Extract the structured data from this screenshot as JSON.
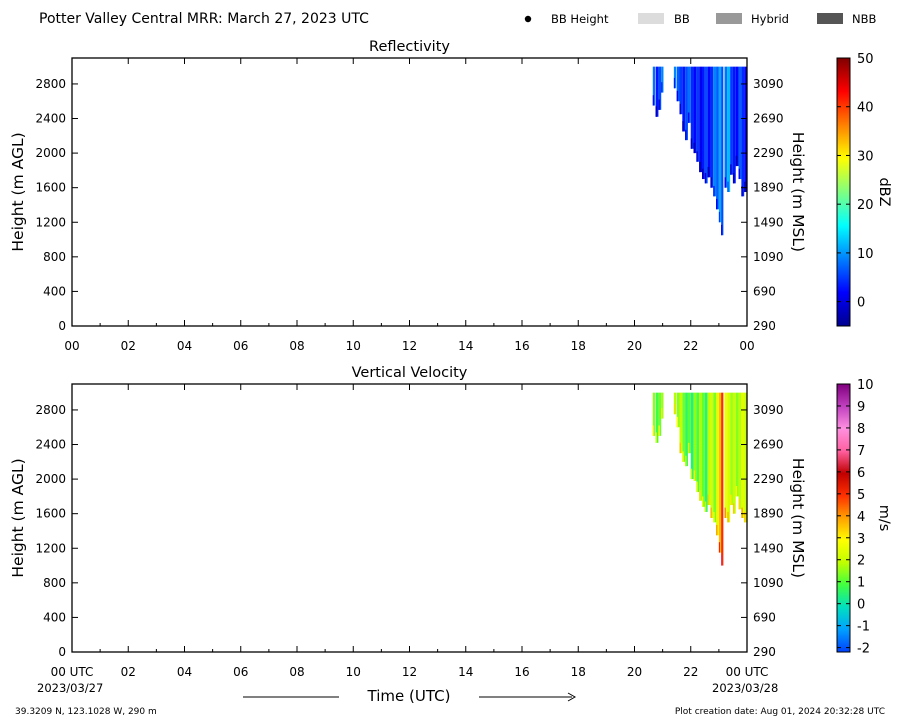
{
  "header": {
    "title": "Potter Valley Central MRR:  March 27, 2023 UTC"
  },
  "legend": {
    "items": [
      {
        "label": "BB Height",
        "kind": "marker",
        "color": "#000000"
      },
      {
        "label": "BB",
        "kind": "swatch",
        "color": "#dcdcdc"
      },
      {
        "label": "Hybrid",
        "kind": "swatch",
        "color": "#999999"
      },
      {
        "label": "NBB",
        "kind": "swatch",
        "color": "#555555"
      }
    ]
  },
  "footer": {
    "location": "39.3209 N, 123.1028 W, 290 m",
    "creation": "Plot creation date: Aug 01, 2024 20:32:28 UTC",
    "time_label": "Time (UTC)",
    "start_date": "2023/03/27",
    "end_date": "2023/03/28"
  },
  "chart_data": [
    {
      "type": "heatmap",
      "title": "Reflectivity",
      "ylabel": "Height (m AGL)",
      "ylabel_right": "Height (m MSL)",
      "xticks": [
        "00",
        "02",
        "04",
        "06",
        "08",
        "10",
        "12",
        "14",
        "16",
        "18",
        "20",
        "22",
        "00"
      ],
      "x_tick_hours": [
        0,
        2,
        4,
        6,
        8,
        10,
        12,
        14,
        16,
        18,
        20,
        22,
        24
      ],
      "xlim_hours": [
        0,
        24
      ],
      "ylim": [
        0,
        3100
      ],
      "yticks": [
        0,
        400,
        800,
        1200,
        1600,
        2000,
        2400,
        2800
      ],
      "yticks_right": [
        290,
        690,
        1090,
        1490,
        1890,
        2290,
        2690,
        3090
      ],
      "colorbar": {
        "label": "dBZ",
        "range": [
          -5,
          50
        ],
        "ticks": [
          0,
          10,
          20,
          30,
          40,
          50
        ],
        "colors": [
          "#00008f",
          "#0000ff",
          "#0080ff",
          "#00ffff",
          "#80ff80",
          "#ffff00",
          "#ff8000",
          "#ff0000",
          "#800000"
        ]
      },
      "echo_top": 3000,
      "columns": [
        {
          "t": 20.65,
          "w": 0.08,
          "bottom": 2550,
          "value": 8
        },
        {
          "t": 20.75,
          "w": 0.1,
          "bottom": 2420,
          "value": 3
        },
        {
          "t": 20.85,
          "w": 0.1,
          "bottom": 2500,
          "value": 6
        },
        {
          "t": 20.95,
          "w": 0.08,
          "bottom": 2700,
          "value": 9
        },
        {
          "t": 21.4,
          "w": 0.08,
          "bottom": 2750,
          "value": 9
        },
        {
          "t": 21.5,
          "w": 0.1,
          "bottom": 2600,
          "value": 7
        },
        {
          "t": 21.6,
          "w": 0.1,
          "bottom": 2450,
          "value": 5
        },
        {
          "t": 21.7,
          "w": 0.1,
          "bottom": 2250,
          "value": 3
        },
        {
          "t": 21.8,
          "w": 0.1,
          "bottom": 2150,
          "value": 6
        },
        {
          "t": 21.9,
          "w": 0.1,
          "bottom": 2350,
          "value": 8
        },
        {
          "t": 22.0,
          "w": 0.1,
          "bottom": 2050,
          "value": 4
        },
        {
          "t": 22.1,
          "w": 0.1,
          "bottom": 2000,
          "value": 2
        },
        {
          "t": 22.2,
          "w": 0.1,
          "bottom": 1900,
          "value": 5
        },
        {
          "t": 22.3,
          "w": 0.1,
          "bottom": 1780,
          "value": 1
        },
        {
          "t": 22.4,
          "w": 0.1,
          "bottom": 1700,
          "value": 3
        },
        {
          "t": 22.5,
          "w": 0.1,
          "bottom": 1650,
          "value": 6
        },
        {
          "t": 22.6,
          "w": 0.1,
          "bottom": 1720,
          "value": 2
        },
        {
          "t": 22.7,
          "w": 0.1,
          "bottom": 1600,
          "value": 4
        },
        {
          "t": 22.8,
          "w": 0.1,
          "bottom": 1500,
          "value": 9
        },
        {
          "t": 22.9,
          "w": 0.1,
          "bottom": 1350,
          "value": 7
        },
        {
          "t": 23.0,
          "w": 0.08,
          "bottom": 1200,
          "value": 11
        },
        {
          "t": 23.08,
          "w": 0.08,
          "bottom": 1050,
          "value": 6
        },
        {
          "t": 23.2,
          "w": 0.1,
          "bottom": 1600,
          "value": 8
        },
        {
          "t": 23.3,
          "w": 0.1,
          "bottom": 1550,
          "value": 12
        },
        {
          "t": 23.4,
          "w": 0.1,
          "bottom": 1750,
          "value": 5
        },
        {
          "t": 23.5,
          "w": 0.1,
          "bottom": 1650,
          "value": 3
        },
        {
          "t": 23.6,
          "w": 0.1,
          "bottom": 1850,
          "value": 2
        },
        {
          "t": 23.7,
          "w": 0.1,
          "bottom": 1700,
          "value": 7
        },
        {
          "t": 23.8,
          "w": 0.1,
          "bottom": 1500,
          "value": 4
        },
        {
          "t": 23.9,
          "w": 0.1,
          "bottom": 1550,
          "value": 2
        }
      ]
    },
    {
      "type": "heatmap",
      "title": "Vertical Velocity",
      "ylabel": "Height (m AGL)",
      "ylabel_right": "Height (m MSL)",
      "xticks": [
        "00 UTC",
        "02",
        "04",
        "06",
        "08",
        "10",
        "12",
        "14",
        "16",
        "18",
        "20",
        "22",
        "00 UTC"
      ],
      "x_tick_hours": [
        0,
        2,
        4,
        6,
        8,
        10,
        12,
        14,
        16,
        18,
        20,
        22,
        24
      ],
      "xlim_hours": [
        0,
        24
      ],
      "ylim": [
        0,
        3100
      ],
      "yticks": [
        0,
        400,
        800,
        1200,
        1600,
        2000,
        2400,
        2800
      ],
      "yticks_right": [
        290,
        690,
        1090,
        1490,
        1890,
        2290,
        2690,
        3090
      ],
      "colorbar": {
        "label": "m/s",
        "range": [
          -2.2,
          10
        ],
        "ticks": [
          -2,
          -1,
          0,
          1,
          2,
          3,
          4,
          5,
          6,
          7,
          8,
          9,
          10
        ],
        "colors": [
          "#0040ff",
          "#00a0ff",
          "#00e0c0",
          "#40ff40",
          "#c0ff00",
          "#ffff00",
          "#ffa000",
          "#ff3000",
          "#c00000",
          "#ff60a0",
          "#ff90e0",
          "#c040c0",
          "#800080"
        ]
      },
      "echo_top": 3000,
      "columns": [
        {
          "t": 20.65,
          "w": 0.08,
          "bottom": 2500,
          "value": 1.5
        },
        {
          "t": 20.75,
          "w": 0.1,
          "bottom": 2420,
          "value": 0.8
        },
        {
          "t": 20.85,
          "w": 0.1,
          "bottom": 2500,
          "value": 1.2
        },
        {
          "t": 20.95,
          "w": 0.08,
          "bottom": 2700,
          "value": 1.6
        },
        {
          "t": 21.4,
          "w": 0.08,
          "bottom": 2750,
          "value": 1.8
        },
        {
          "t": 21.5,
          "w": 0.1,
          "bottom": 2600,
          "value": 1.4
        },
        {
          "t": 21.6,
          "w": 0.1,
          "bottom": 2300,
          "value": 2.0
        },
        {
          "t": 21.7,
          "w": 0.1,
          "bottom": 2200,
          "value": 1.2
        },
        {
          "t": 21.8,
          "w": 0.1,
          "bottom": 2150,
          "value": 0.6
        },
        {
          "t": 21.9,
          "w": 0.1,
          "bottom": 2300,
          "value": 1.0
        },
        {
          "t": 22.0,
          "w": 0.1,
          "bottom": 2000,
          "value": 0.4
        },
        {
          "t": 22.1,
          "w": 0.1,
          "bottom": 1980,
          "value": 1.5
        },
        {
          "t": 22.2,
          "w": 0.1,
          "bottom": 1850,
          "value": 0.9
        },
        {
          "t": 22.3,
          "w": 0.1,
          "bottom": 1750,
          "value": 1.7
        },
        {
          "t": 22.4,
          "w": 0.1,
          "bottom": 1680,
          "value": 1.1
        },
        {
          "t": 22.5,
          "w": 0.1,
          "bottom": 1620,
          "value": 0.5
        },
        {
          "t": 22.6,
          "w": 0.1,
          "bottom": 1700,
          "value": 1.9
        },
        {
          "t": 22.7,
          "w": 0.1,
          "bottom": 1550,
          "value": 2.2
        },
        {
          "t": 22.8,
          "w": 0.1,
          "bottom": 1500,
          "value": 1.3
        },
        {
          "t": 22.9,
          "w": 0.1,
          "bottom": 1350,
          "value": 2.4
        },
        {
          "t": 23.0,
          "w": 0.08,
          "bottom": 1150,
          "value": 3.6
        },
        {
          "t": 23.08,
          "w": 0.08,
          "bottom": 1000,
          "value": 5.0
        },
        {
          "t": 23.2,
          "w": 0.1,
          "bottom": 1550,
          "value": 2.6
        },
        {
          "t": 23.3,
          "w": 0.1,
          "bottom": 1500,
          "value": 2.2
        },
        {
          "t": 23.4,
          "w": 0.1,
          "bottom": 1700,
          "value": 1.6
        },
        {
          "t": 23.5,
          "w": 0.1,
          "bottom": 1600,
          "value": 2.0
        },
        {
          "t": 23.6,
          "w": 0.1,
          "bottom": 1800,
          "value": 1.4
        },
        {
          "t": 23.7,
          "w": 0.1,
          "bottom": 1650,
          "value": 1.8
        },
        {
          "t": 23.8,
          "w": 0.1,
          "bottom": 1550,
          "value": 2.4
        },
        {
          "t": 23.9,
          "w": 0.1,
          "bottom": 1500,
          "value": 2.0
        }
      ]
    }
  ]
}
